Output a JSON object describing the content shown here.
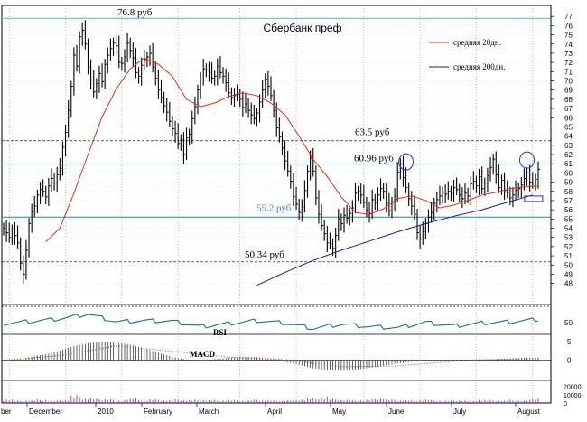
{
  "chart_data": [
    {
      "type": "line",
      "panel": "price",
      "title": "Сбербанк преф",
      "y_axis": {
        "side": "right",
        "ylim": [
          46,
          78
        ],
        "ticks": [
          77,
          76,
          75,
          74,
          73,
          72,
          71,
          70,
          69,
          68,
          67,
          66,
          65,
          64,
          63,
          62,
          61,
          60,
          59,
          58,
          57,
          56,
          55,
          54,
          53,
          52,
          51,
          50,
          49,
          48
        ]
      },
      "x_axis": {
        "ticks": [
          "ber",
          "December",
          "2010",
          "February",
          "March",
          "April",
          "May",
          "June",
          "July",
          "August"
        ]
      },
      "grid": true,
      "legend": {
        "placement": "top-right",
        "entries": [
          {
            "label": "средняя 20дн.",
            "color": "#e03010",
            "style": "solid"
          },
          {
            "label": "средняя 200дн.",
            "color": "#1a1aa0",
            "style": "solid"
          }
        ]
      },
      "horizontal_lines": [
        {
          "value": 76.8,
          "color": "#4bb8d8",
          "style": "solid"
        },
        {
          "value": 63.5,
          "color": "#222222",
          "style": "dashed"
        },
        {
          "value": 60.96,
          "color": "#4bb8d8",
          "style": "solid"
        },
        {
          "value": 55.2,
          "color": "#1e88b8",
          "style": "solid"
        },
        {
          "value": 50.34,
          "color": "#333333",
          "style": "dashed"
        }
      ],
      "annotations": [
        {
          "text": "76.8 руб",
          "color": "#000000"
        },
        {
          "text": "63.5 руб",
          "color": "#000000"
        },
        {
          "text": "60.96 руб",
          "color": "#000000"
        },
        {
          "text": "55.2 руб",
          "color": "#3a8fb8"
        },
        {
          "text": "50.34 руб",
          "color": "#000000"
        }
      ],
      "series": [
        {
          "kind": "price-bars",
          "x": [
            0,
            1,
            2,
            3,
            4,
            5,
            6,
            7,
            8,
            9,
            10,
            11,
            12,
            13,
            14,
            15,
            16,
            17,
            18,
            19,
            20,
            21,
            22,
            23,
            24,
            25,
            26,
            27,
            28,
            29,
            30,
            31,
            32,
            33,
            34,
            35,
            36,
            37,
            38,
            39,
            40,
            41,
            42,
            43,
            44,
            45,
            46,
            47,
            48,
            49,
            50,
            51,
            52,
            53,
            54,
            55,
            56,
            57,
            58,
            59,
            60,
            61,
            62,
            63,
            64,
            65,
            66,
            67,
            68,
            69,
            70,
            71,
            72,
            73,
            74,
            75,
            76,
            77,
            78,
            79,
            80,
            81,
            82,
            83,
            84,
            85,
            86,
            87,
            88,
            89,
            90,
            91,
            92,
            93,
            94,
            95,
            96,
            97,
            98,
            99,
            100,
            101,
            102,
            103,
            104,
            105,
            106,
            107,
            108,
            109,
            110,
            111,
            112,
            113,
            114,
            115,
            116,
            117,
            118,
            119,
            120,
            121,
            122,
            123,
            124,
            125,
            126,
            127,
            128,
            129,
            130,
            131,
            132,
            133,
            134,
            135,
            136,
            137,
            138,
            139,
            140,
            141,
            142,
            143,
            144,
            145,
            146,
            147,
            148,
            149,
            150,
            151,
            152,
            153,
            154,
            155,
            156,
            157,
            158,
            159,
            160,
            161,
            162,
            163,
            164,
            165,
            166,
            167,
            168,
            169,
            170,
            171,
            172,
            173,
            174,
            175,
            176,
            177,
            178,
            179,
            180,
            181,
            182,
            183,
            184,
            185,
            186,
            187,
            188,
            189,
            190
          ],
          "close": [
            54.0,
            53.5,
            53.0,
            53.8,
            53.2,
            52.4,
            50.2,
            49.0,
            51.6,
            54.5,
            55.8,
            56.4,
            57.6,
            58.2,
            58.0,
            57.4,
            58.6,
            59.4,
            58.9,
            59.8,
            60.5,
            62.8,
            64.4,
            66.8,
            69.4,
            72.8,
            71.6,
            74.8,
            75.5,
            74.0,
            71.5,
            70.1,
            68.8,
            69.7,
            70.8,
            69.9,
            71.8,
            72.8,
            73.5,
            74.1,
            73.8,
            72.0,
            71.9,
            72.6,
            74.1,
            73.3,
            72.5,
            70.9,
            70.5,
            71.7,
            72.3,
            72.6,
            73.0,
            71.5,
            70.3,
            69.0,
            68.2,
            67.3,
            66.6,
            65.6,
            64.8,
            64.3,
            63.2,
            63.6,
            62.0,
            63.8,
            64.2,
            65.9,
            67.2,
            69.0,
            70.1,
            71.3,
            71.2,
            70.9,
            70.3,
            70.5,
            71.6,
            70.9,
            70.5,
            69.8,
            68.7,
            68.2,
            68.4,
            68.5,
            68.0,
            67.1,
            67.5,
            66.8,
            66.3,
            65.9,
            66.5,
            67.7,
            69.0,
            70.2,
            69.4,
            68.4,
            66.8,
            64.9,
            63.9,
            62.7,
            61.3,
            60.2,
            59.1,
            57.4,
            56.6,
            55.7,
            56.3,
            58.1,
            60.2,
            61.6,
            60.2,
            57.3,
            55.5,
            54.3,
            53.4,
            52.4,
            52.3,
            51.8,
            53.2,
            55.0,
            54.5,
            55.4,
            55.1,
            55.6,
            56.2,
            57.8,
            58.0,
            57.6,
            56.8,
            56.0,
            55.6,
            57.1,
            56.8,
            57.6,
            58.3,
            58.0,
            56.7,
            55.9,
            56.8,
            57.5,
            60.1,
            61.0,
            59.5,
            58.4,
            57.2,
            56.4,
            55.5,
            53.5,
            52.8,
            53.6,
            54.5,
            55.2,
            55.7,
            56.7,
            57.1,
            57.5,
            57.9,
            57.7,
            58.0,
            57.8,
            58.4,
            58.2,
            57.6,
            57.2,
            57.8,
            57.5,
            58.8,
            59.1,
            58.6,
            59.6,
            58.3,
            58.9,
            59.7,
            60.6,
            61.5,
            59.8,
            58.4,
            59.2,
            58.1,
            57.9,
            57.3,
            57.6,
            58.1,
            58.3,
            58.7,
            59.4,
            60.0,
            59.0,
            58.9,
            59.3,
            60.4
          ]
        },
        {
          "kind": "line",
          "name": "средняя 20дн.",
          "color": "#e03010",
          "x": [
            0,
            5,
            10,
            15,
            20,
            25,
            30,
            35,
            40,
            45,
            50,
            55,
            60,
            65,
            70,
            75,
            80,
            85,
            90,
            95,
            100,
            105,
            110,
            115,
            120,
            125,
            130,
            135,
            140,
            145,
            150,
            155,
            160,
            165,
            170,
            175,
            180,
            185,
            190
          ],
          "values": [
            null,
            null,
            null,
            52.5,
            54.0,
            57.8,
            62.0,
            66.1,
            69.1,
            71.3,
            72.5,
            71.8,
            70.5,
            68.0,
            67.2,
            67.6,
            68.3,
            68.7,
            68.4,
            67.6,
            66.3,
            64.0,
            61.5,
            59.6,
            57.4,
            55.7,
            55.5,
            56.1,
            57.2,
            57.5,
            57.0,
            56.2,
            56.5,
            57.0,
            57.6,
            57.9,
            58.3,
            58.5,
            58.6
          ]
        },
        {
          "kind": "line",
          "name": "средняя 200дн.",
          "color": "#1a1aa0",
          "x": [
            90,
            100,
            110,
            120,
            130,
            140,
            150,
            160,
            170,
            180,
            188
          ],
          "values": [
            47.8,
            49.2,
            50.5,
            51.6,
            52.6,
            53.6,
            54.5,
            55.3,
            56.0,
            56.9,
            57.6
          ]
        }
      ],
      "markers": [
        {
          "shape": "ellipse",
          "x": 143,
          "y": 61.2,
          "color": "#2a2acc"
        },
        {
          "shape": "ellipse",
          "x": 186,
          "y": 61.4,
          "color": "#2a2acc"
        },
        {
          "shape": "rectangle",
          "x": 189,
          "y": 57.2,
          "color": "#2a2acc"
        }
      ]
    },
    {
      "type": "line",
      "panel": "RSI",
      "title": "",
      "y_axis": {
        "side": "right",
        "ticks": [
          50
        ]
      },
      "labels": [
        "RSI"
      ],
      "reference_line": {
        "value": 100,
        "style": "dashed"
      },
      "series": [
        {
          "name": "RSI",
          "color": "#1e6e8e",
          "x": [
            0,
            10,
            20,
            30,
            40,
            50,
            60,
            70,
            80,
            90,
            100,
            110,
            120,
            130,
            140,
            150,
            160,
            170,
            180,
            190
          ],
          "values": [
            48,
            52,
            56,
            64,
            51,
            53,
            52,
            43,
            48,
            53,
            49,
            40,
            47,
            43,
            41,
            50,
            44,
            49,
            51,
            55
          ]
        }
      ]
    },
    {
      "type": "bar",
      "panel": "MACD",
      "title": "",
      "labels": [
        "MACD"
      ],
      "y_axis": {
        "side": "right",
        "ticks": [
          5,
          0
        ]
      },
      "series": [
        {
          "name": "MACD histogram",
          "color": "#222222",
          "x": [
            0,
            5,
            10,
            15,
            20,
            25,
            30,
            35,
            40,
            45,
            50,
            55,
            60,
            65,
            70,
            75,
            80,
            85,
            90,
            95,
            100,
            105,
            110,
            115,
            120,
            125,
            130,
            135,
            140,
            145,
            150,
            155,
            160,
            165,
            170,
            175,
            180,
            185,
            190
          ],
          "values": [
            0,
            0.3,
            0.9,
            1.6,
            2.6,
            3.8,
            4.6,
            5.0,
            4.8,
            4.2,
            3.2,
            2.0,
            0.9,
            0.2,
            -0.2,
            0.3,
            0.7,
            0.9,
            0.8,
            0.4,
            -0.4,
            -1.3,
            -2.2,
            -2.7,
            -2.9,
            -2.6,
            -2.1,
            -1.5,
            -0.9,
            -0.4,
            -0.2,
            -0.1,
            0.1,
            0.2,
            0.3,
            0.3,
            0.5,
            0.6,
            0.7
          ]
        },
        {
          "name": "MACD signal",
          "color": "#c0392b",
          "style": "dotted",
          "x": [
            0,
            20,
            40,
            60,
            80,
            100,
            120,
            140,
            160,
            180,
            190
          ],
          "values": [
            0,
            1.2,
            3.9,
            2.4,
            0.8,
            0.2,
            -1.8,
            -1.6,
            -0.3,
            0.3,
            0.5
          ]
        }
      ]
    },
    {
      "type": "bar",
      "panel": "Volume",
      "title": "",
      "y_axis": {
        "side": "right",
        "ticks": [
          20000,
          10000,
          0
        ]
      },
      "series": [
        {
          "name": "Volume",
          "color": "#9b30c8",
          "x": [
            0,
            4,
            8,
            12,
            16,
            20,
            24,
            28,
            32,
            36,
            40,
            44,
            48,
            52,
            56,
            60,
            64,
            68,
            72,
            76,
            80,
            84,
            88,
            92,
            96,
            100,
            104,
            108,
            112,
            116,
            120,
            124,
            128,
            132,
            136,
            140,
            144,
            148,
            152,
            156,
            160,
            164,
            168,
            172,
            176,
            180,
            184,
            188
          ],
          "values": [
            4000,
            2500,
            3000,
            3500,
            2500,
            3500,
            8000,
            6000,
            5000,
            4500,
            3000,
            5500,
            3500,
            4000,
            3000,
            4500,
            3000,
            3500,
            3000,
            2800,
            3000,
            2600,
            3500,
            3000,
            2500,
            3000,
            4000,
            5500,
            7000,
            4500,
            3500,
            3000,
            3500,
            6000,
            4000,
            3000,
            3000,
            3500,
            3000,
            2500,
            3000,
            2800,
            3500,
            3000,
            2600,
            3000,
            2800,
            6500
          ]
        }
      ]
    }
  ]
}
